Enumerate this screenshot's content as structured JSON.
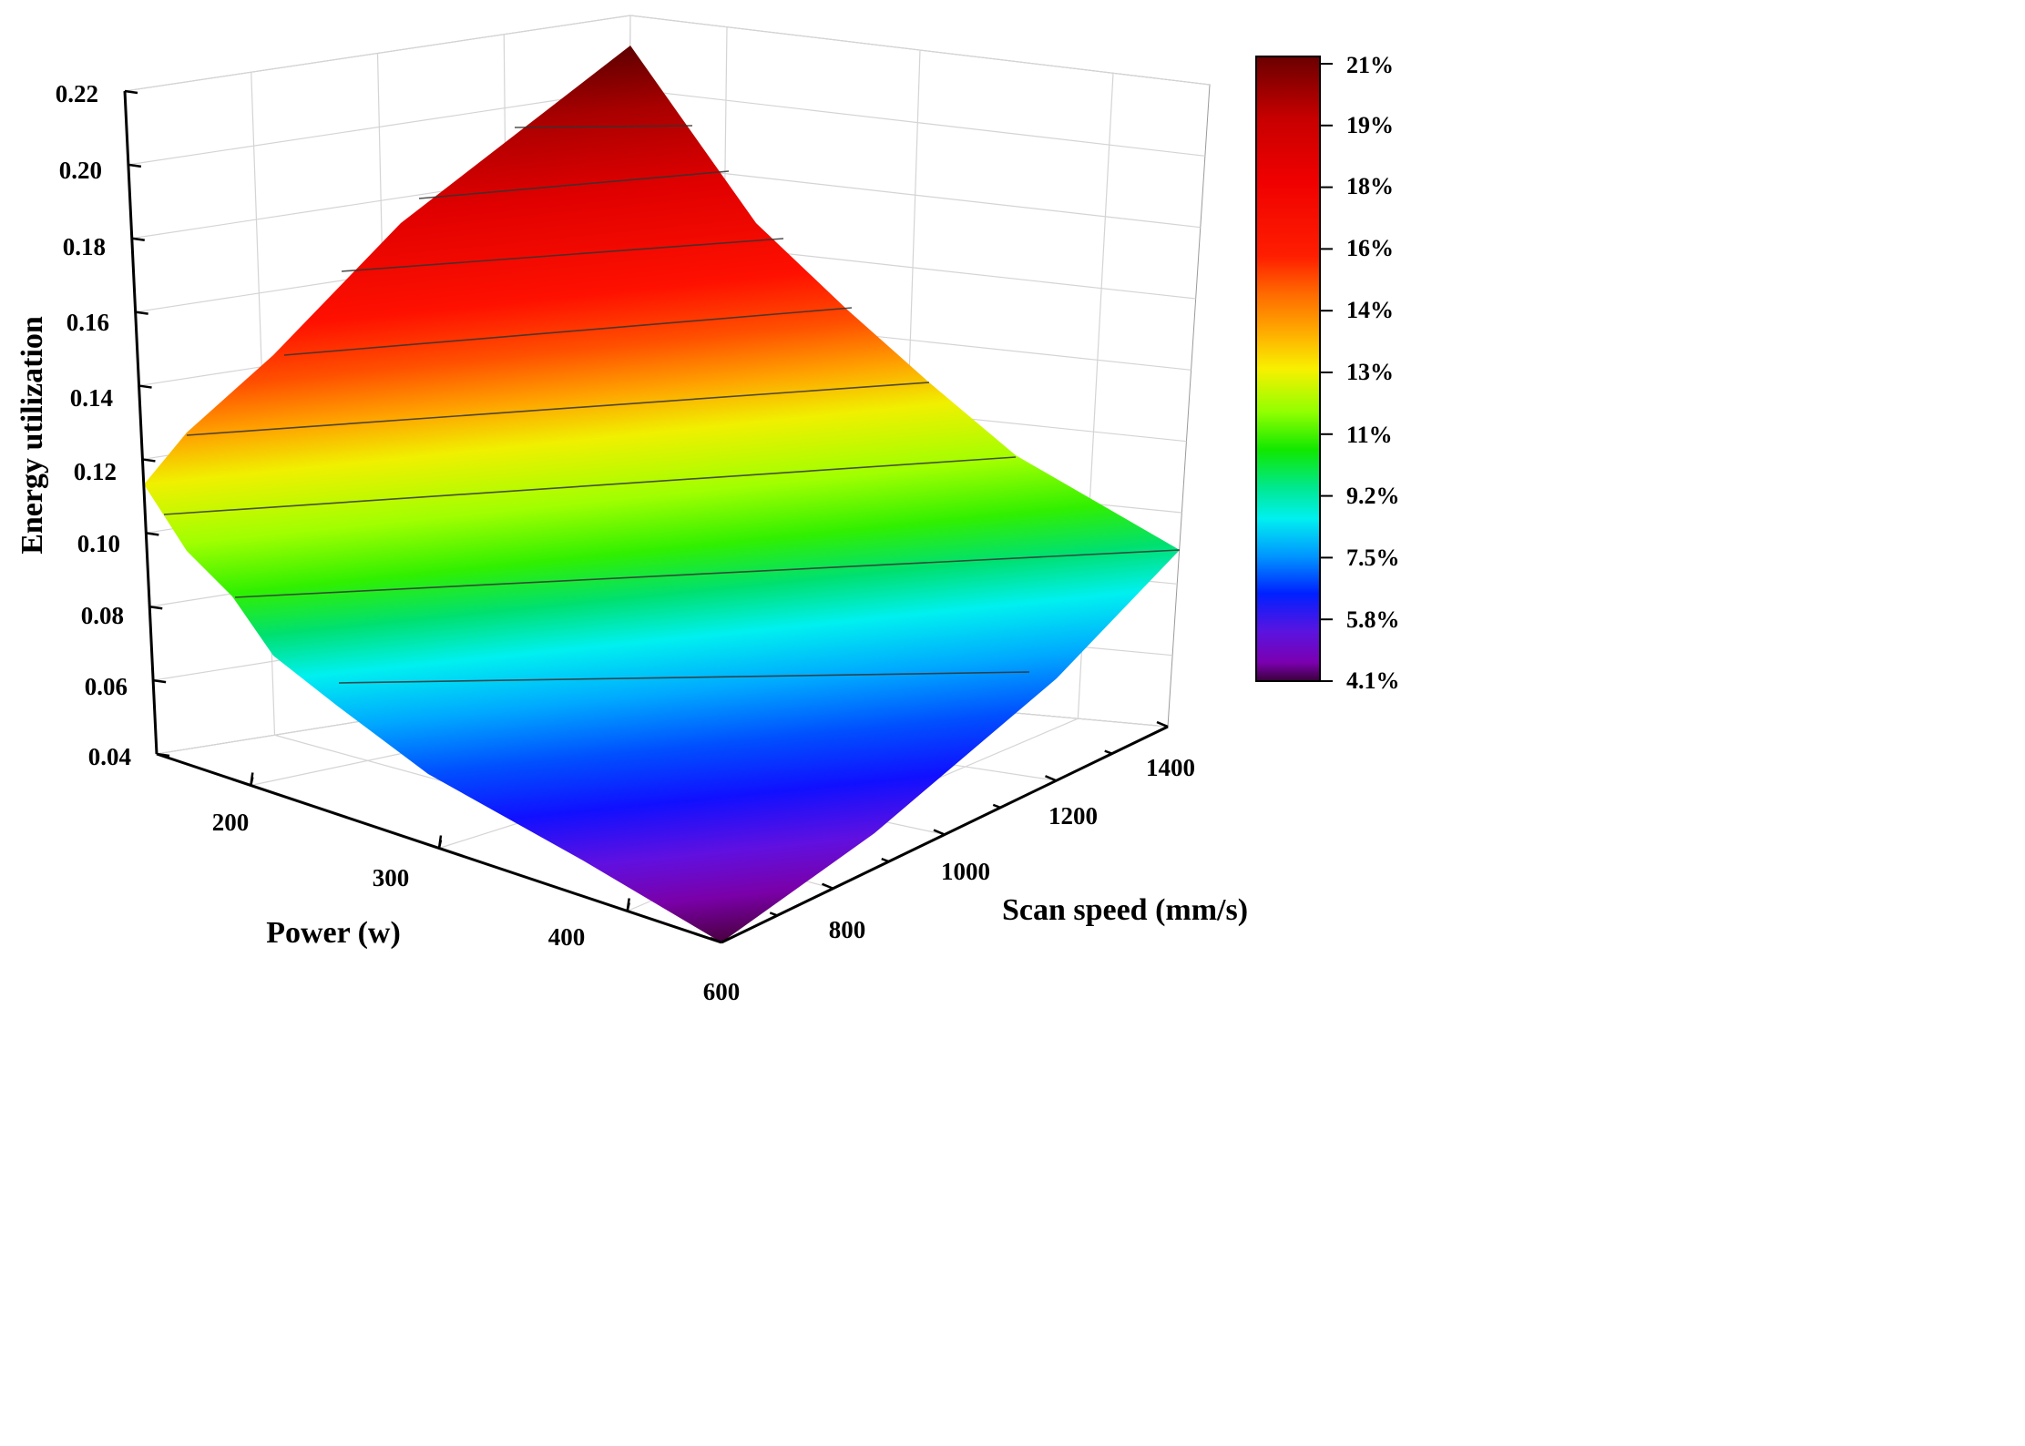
{
  "chart_data": {
    "type": "surface3d",
    "title": "",
    "x_axis": {
      "label": "Power (w)",
      "ticks": [
        "200",
        "300",
        "400"
      ],
      "range": [
        150,
        450
      ]
    },
    "y_axis": {
      "label": "Scan speed (mm/s)",
      "ticks": [
        "600",
        "800",
        "1000",
        "1200",
        "1400"
      ],
      "range": [
        600,
        1400
      ]
    },
    "z_axis": {
      "label": "Energy utilization",
      "ticks": [
        "0.04",
        "0.06",
        "0.08",
        "0.10",
        "0.12",
        "0.14",
        "0.16",
        "0.18",
        "0.20",
        "0.22"
      ],
      "range": [
        0.04,
        0.22
      ]
    },
    "surface_corners": [
      {
        "power": 150,
        "scan_speed": 600,
        "energy_utilization": 0.117
      },
      {
        "power": 150,
        "scan_speed": 1400,
        "energy_utilization": 0.22
      },
      {
        "power": 450,
        "scan_speed": 1400,
        "energy_utilization": 0.097
      },
      {
        "power": 450,
        "scan_speed": 600,
        "energy_utilization": 0.044
      }
    ],
    "colorbar": {
      "labels": [
        "21%",
        "19%",
        "18%",
        "16%",
        "14%",
        "13%",
        "11%",
        "9.2%",
        "7.5%",
        "5.8%",
        "4.1%"
      ],
      "colormap": [
        "#6a0000",
        "#c80000",
        "#ff1e00",
        "#ff6a00",
        "#ffd200",
        "#d2ff00",
        "#64ff00",
        "#00e85a",
        "#00f0f0",
        "#0096ff",
        "#0020ff",
        "#4a14e6",
        "#7b00b0",
        "#3a003a"
      ]
    },
    "grid": true,
    "contour_lines": true
  }
}
